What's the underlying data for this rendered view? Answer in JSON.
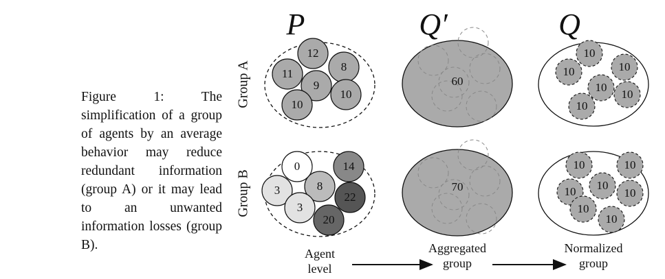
{
  "caption": "Figure 1: The simplification of a group of agents by an average behavior may reduce redundant information (group A) or it may lead to an unwanted information losses (group B).",
  "columns": [
    {
      "header": "P",
      "label": [
        "Agent",
        "level"
      ]
    },
    {
      "header": "Q′",
      "label": [
        "Aggregated",
        "group"
      ]
    },
    {
      "header": "Q",
      "label": [
        "Normalized",
        "group"
      ]
    }
  ],
  "rows": [
    {
      "label": "Group A",
      "agents": [
        12,
        11,
        8,
        9,
        10,
        10
      ],
      "aggregated": 60,
      "normalized": [
        10,
        10,
        10,
        10,
        10,
        10
      ]
    },
    {
      "label": "Group B",
      "agents": [
        0,
        14,
        3,
        8,
        3,
        22,
        20
      ],
      "aggregated": 70,
      "normalized": [
        10,
        10,
        10,
        10,
        10,
        10,
        10
      ]
    }
  ]
}
